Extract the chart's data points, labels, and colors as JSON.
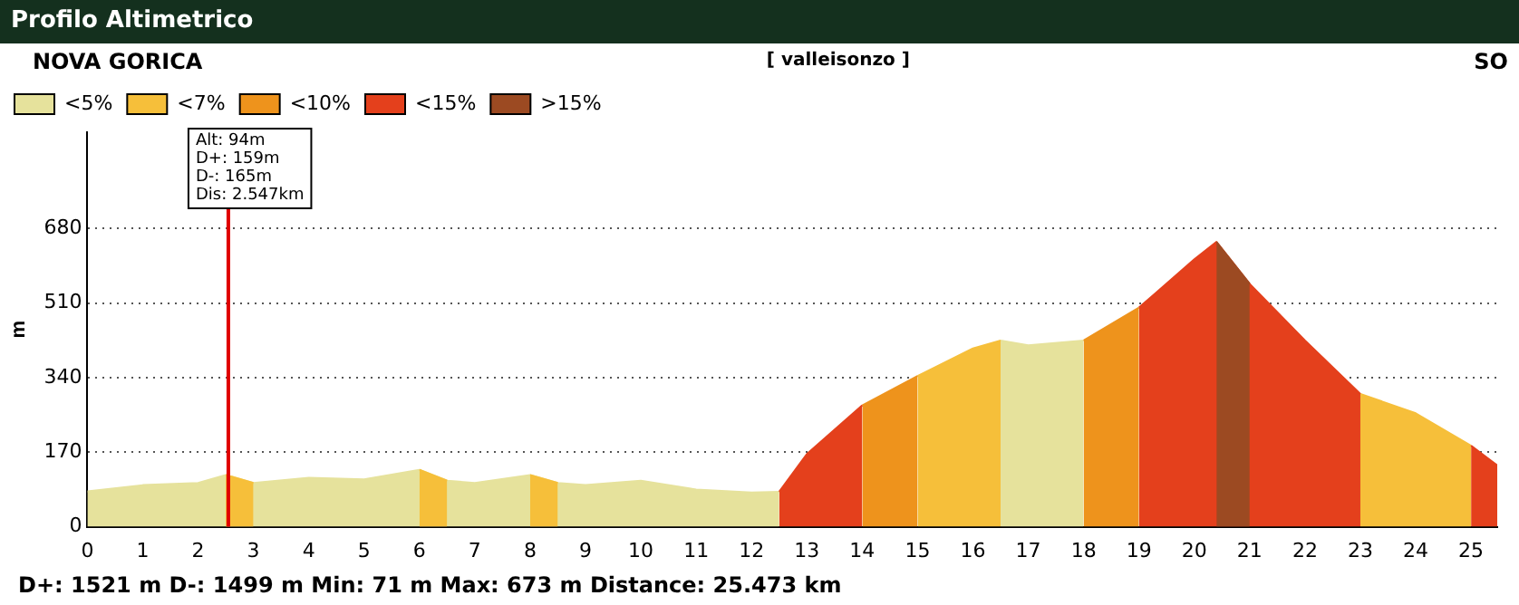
{
  "chart_data": {
    "type": "area",
    "title": "Profilo Altimetrico",
    "ylabel": "m",
    "annotations": [
      "NOVA GORICA",
      "[ valleisonzo ]",
      "SO",
      "D+: 1521 m   D-: 1499 m   Min: 71 m   Max: 673 m   Distance: 25.473 km"
    ],
    "x": [
      0,
      1,
      2,
      2.5,
      3,
      4,
      5,
      6,
      6.5,
      7,
      8,
      8.5,
      9,
      10,
      11,
      12,
      12.5,
      13,
      14,
      15,
      16,
      16.5,
      17,
      18,
      19,
      20,
      20.4,
      21,
      22,
      23,
      24,
      25,
      25.473
    ],
    "series": [
      {
        "name": "<5%",
        "color": "#e6e29c",
        "values": [
          81,
          95,
          100,
          118,
          100,
          112,
          108,
          130,
          105,
          100,
          118,
          100,
          95,
          105,
          85,
          78,
          80,
          null,
          null,
          null,
          null,
          425,
          414,
          425,
          null,
          null,
          null,
          null,
          null,
          null,
          null,
          null,
          null
        ]
      },
      {
        "name": "<7%",
        "color": "#f6bf3a",
        "values": [
          null,
          null,
          null,
          118,
          100,
          null,
          null,
          130,
          105,
          null,
          118,
          100,
          null,
          null,
          null,
          null,
          null,
          null,
          null,
          344,
          407,
          425,
          null,
          null,
          null,
          null,
          null,
          null,
          null,
          303,
          259,
          185,
          null
        ]
      },
      {
        "name": "<10%",
        "color": "#ee931c",
        "values": [
          null,
          null,
          null,
          null,
          null,
          null,
          null,
          null,
          null,
          null,
          null,
          null,
          null,
          null,
          null,
          null,
          null,
          null,
          277,
          344,
          null,
          null,
          null,
          425,
          500,
          null,
          null,
          null,
          null,
          null,
          null,
          null,
          null
        ]
      },
      {
        "name": "<15%",
        "color": "#e4401c",
        "values": [
          null,
          null,
          null,
          null,
          null,
          null,
          null,
          null,
          null,
          null,
          null,
          null,
          null,
          null,
          null,
          null,
          80,
          166,
          277,
          null,
          null,
          null,
          null,
          null,
          500,
          610,
          650,
          554,
          425,
          303,
          null,
          185,
          140
        ]
      },
      {
        "name": ">15%",
        "color": "#9c4a22",
        "values": [
          null,
          null,
          null,
          null,
          null,
          null,
          null,
          null,
          null,
          null,
          null,
          null,
          null,
          null,
          null,
          null,
          null,
          null,
          null,
          null,
          null,
          null,
          null,
          null,
          null,
          null,
          650,
          554,
          null,
          null,
          null,
          null,
          null
        ]
      }
    ],
    "xlim": [
      0,
      25.473
    ],
    "xticks": [
      0,
      1,
      2,
      3,
      4,
      5,
      6,
      7,
      8,
      9,
      10,
      11,
      12,
      13,
      14,
      15,
      16,
      17,
      18,
      19,
      20,
      21,
      22,
      23,
      24,
      25
    ],
    "ylim": [
      0,
      900
    ],
    "yticks": [
      0,
      170,
      340,
      510,
      680
    ],
    "grid": "y",
    "legend": "top left",
    "ref_lines": [
      {
        "axis": "x",
        "value": 2.547,
        "label": "Alt: 94m\nD+: 159m\nD-: 165m\nDis: 2.547km",
        "color": "#e00000"
      }
    ]
  }
}
